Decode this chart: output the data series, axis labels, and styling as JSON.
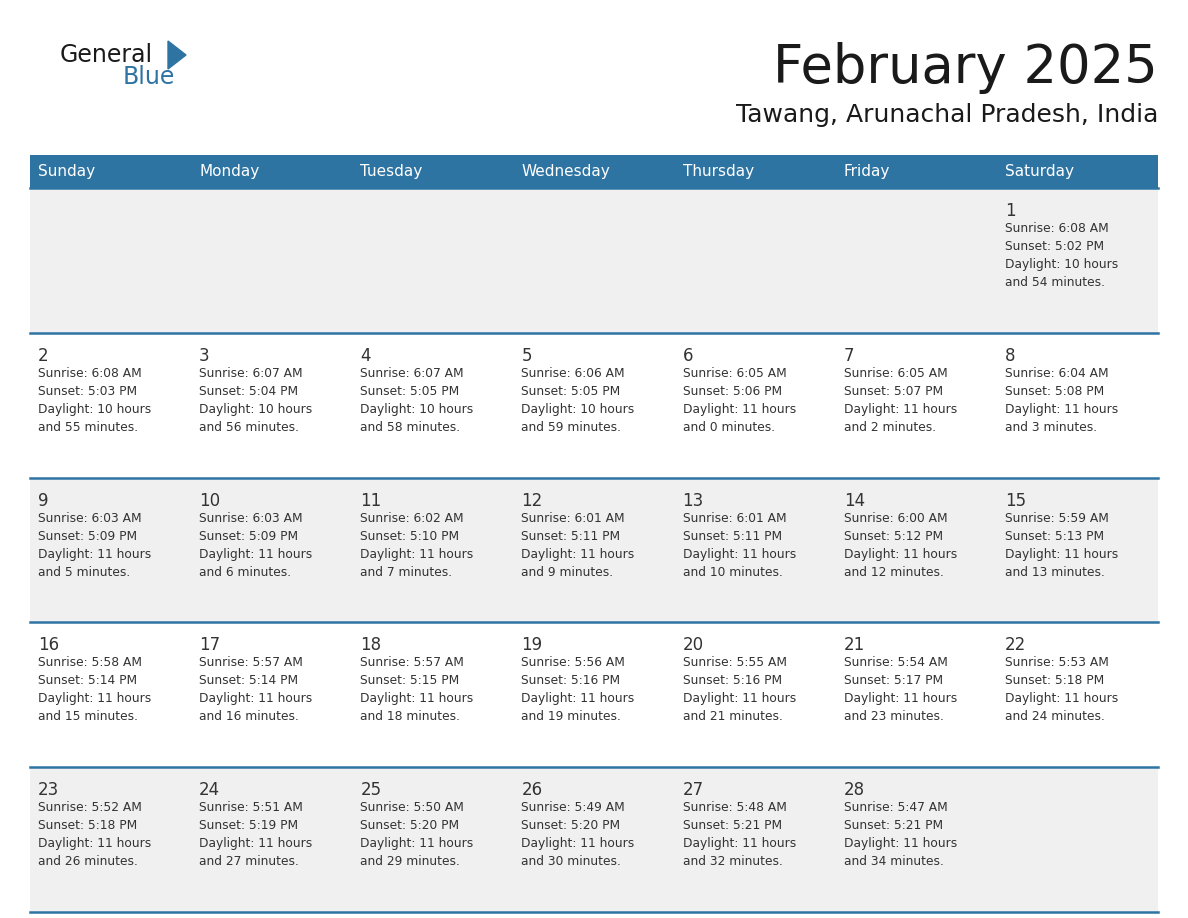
{
  "title": "February 2025",
  "subtitle": "Tawang, Arunachal Pradesh, India",
  "days_of_week": [
    "Sunday",
    "Monday",
    "Tuesday",
    "Wednesday",
    "Thursday",
    "Friday",
    "Saturday"
  ],
  "header_bg": "#2E74A3",
  "header_text": "#FFFFFF",
  "cell_bg_odd": "#F0F0F0",
  "cell_bg_even": "#FFFFFF",
  "separator_color": "#2E74A3",
  "day_number_color": "#333333",
  "cell_text_color": "#333333",
  "title_color": "#1A1A1A",
  "logo_general_color": "#1A1A1A",
  "logo_blue_color": "#2E74A3",
  "calendar_data": [
    {
      "day": 1,
      "col": 6,
      "row": 0,
      "sunrise": "6:08 AM",
      "sunset": "5:02 PM",
      "daylight_hrs": 10,
      "daylight_min": 54
    },
    {
      "day": 2,
      "col": 0,
      "row": 1,
      "sunrise": "6:08 AM",
      "sunset": "5:03 PM",
      "daylight_hrs": 10,
      "daylight_min": 55
    },
    {
      "day": 3,
      "col": 1,
      "row": 1,
      "sunrise": "6:07 AM",
      "sunset": "5:04 PM",
      "daylight_hrs": 10,
      "daylight_min": 56
    },
    {
      "day": 4,
      "col": 2,
      "row": 1,
      "sunrise": "6:07 AM",
      "sunset": "5:05 PM",
      "daylight_hrs": 10,
      "daylight_min": 58
    },
    {
      "day": 5,
      "col": 3,
      "row": 1,
      "sunrise": "6:06 AM",
      "sunset": "5:05 PM",
      "daylight_hrs": 10,
      "daylight_min": 59
    },
    {
      "day": 6,
      "col": 4,
      "row": 1,
      "sunrise": "6:05 AM",
      "sunset": "5:06 PM",
      "daylight_hrs": 11,
      "daylight_min": 0
    },
    {
      "day": 7,
      "col": 5,
      "row": 1,
      "sunrise": "6:05 AM",
      "sunset": "5:07 PM",
      "daylight_hrs": 11,
      "daylight_min": 2
    },
    {
      "day": 8,
      "col": 6,
      "row": 1,
      "sunrise": "6:04 AM",
      "sunset": "5:08 PM",
      "daylight_hrs": 11,
      "daylight_min": 3
    },
    {
      "day": 9,
      "col": 0,
      "row": 2,
      "sunrise": "6:03 AM",
      "sunset": "5:09 PM",
      "daylight_hrs": 11,
      "daylight_min": 5
    },
    {
      "day": 10,
      "col": 1,
      "row": 2,
      "sunrise": "6:03 AM",
      "sunset": "5:09 PM",
      "daylight_hrs": 11,
      "daylight_min": 6
    },
    {
      "day": 11,
      "col": 2,
      "row": 2,
      "sunrise": "6:02 AM",
      "sunset": "5:10 PM",
      "daylight_hrs": 11,
      "daylight_min": 7
    },
    {
      "day": 12,
      "col": 3,
      "row": 2,
      "sunrise": "6:01 AM",
      "sunset": "5:11 PM",
      "daylight_hrs": 11,
      "daylight_min": 9
    },
    {
      "day": 13,
      "col": 4,
      "row": 2,
      "sunrise": "6:01 AM",
      "sunset": "5:11 PM",
      "daylight_hrs": 11,
      "daylight_min": 10
    },
    {
      "day": 14,
      "col": 5,
      "row": 2,
      "sunrise": "6:00 AM",
      "sunset": "5:12 PM",
      "daylight_hrs": 11,
      "daylight_min": 12
    },
    {
      "day": 15,
      "col": 6,
      "row": 2,
      "sunrise": "5:59 AM",
      "sunset": "5:13 PM",
      "daylight_hrs": 11,
      "daylight_min": 13
    },
    {
      "day": 16,
      "col": 0,
      "row": 3,
      "sunrise": "5:58 AM",
      "sunset": "5:14 PM",
      "daylight_hrs": 11,
      "daylight_min": 15
    },
    {
      "day": 17,
      "col": 1,
      "row": 3,
      "sunrise": "5:57 AM",
      "sunset": "5:14 PM",
      "daylight_hrs": 11,
      "daylight_min": 16
    },
    {
      "day": 18,
      "col": 2,
      "row": 3,
      "sunrise": "5:57 AM",
      "sunset": "5:15 PM",
      "daylight_hrs": 11,
      "daylight_min": 18
    },
    {
      "day": 19,
      "col": 3,
      "row": 3,
      "sunrise": "5:56 AM",
      "sunset": "5:16 PM",
      "daylight_hrs": 11,
      "daylight_min": 19
    },
    {
      "day": 20,
      "col": 4,
      "row": 3,
      "sunrise": "5:55 AM",
      "sunset": "5:16 PM",
      "daylight_hrs": 11,
      "daylight_min": 21
    },
    {
      "day": 21,
      "col": 5,
      "row": 3,
      "sunrise": "5:54 AM",
      "sunset": "5:17 PM",
      "daylight_hrs": 11,
      "daylight_min": 23
    },
    {
      "day": 22,
      "col": 6,
      "row": 3,
      "sunrise": "5:53 AM",
      "sunset": "5:18 PM",
      "daylight_hrs": 11,
      "daylight_min": 24
    },
    {
      "day": 23,
      "col": 0,
      "row": 4,
      "sunrise": "5:52 AM",
      "sunset": "5:18 PM",
      "daylight_hrs": 11,
      "daylight_min": 26
    },
    {
      "day": 24,
      "col": 1,
      "row": 4,
      "sunrise": "5:51 AM",
      "sunset": "5:19 PM",
      "daylight_hrs": 11,
      "daylight_min": 27
    },
    {
      "day": 25,
      "col": 2,
      "row": 4,
      "sunrise": "5:50 AM",
      "sunset": "5:20 PM",
      "daylight_hrs": 11,
      "daylight_min": 29
    },
    {
      "day": 26,
      "col": 3,
      "row": 4,
      "sunrise": "5:49 AM",
      "sunset": "5:20 PM",
      "daylight_hrs": 11,
      "daylight_min": 30
    },
    {
      "day": 27,
      "col": 4,
      "row": 4,
      "sunrise": "5:48 AM",
      "sunset": "5:21 PM",
      "daylight_hrs": 11,
      "daylight_min": 32
    },
    {
      "day": 28,
      "col": 5,
      "row": 4,
      "sunrise": "5:47 AM",
      "sunset": "5:21 PM",
      "daylight_hrs": 11,
      "daylight_min": 34
    }
  ],
  "num_rows": 5,
  "num_cols": 7
}
